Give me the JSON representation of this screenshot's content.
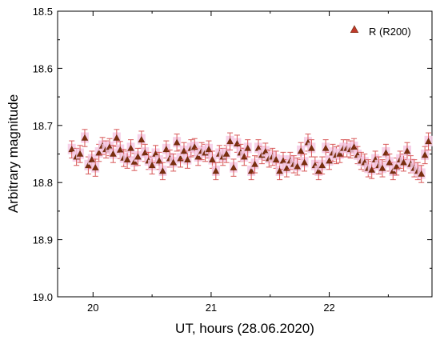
{
  "chart_data": {
    "type": "scatter",
    "title": "",
    "xlabel": "UT, hours (28.06.2020)",
    "ylabel": "Arbitrary magnitude",
    "xlim": [
      19.7,
      22.87
    ],
    "ylim": [
      19.0,
      18.5
    ],
    "y_inverted": true,
    "x_ticks": [
      20,
      21,
      22
    ],
    "x_tick_labels": [
      "20",
      "21",
      "22"
    ],
    "y_ticks": [
      18.5,
      18.6,
      18.7,
      18.8,
      18.9,
      19.0
    ],
    "y_tick_labels": [
      "18.5",
      "18.6",
      "18.7",
      "18.8",
      "18.9",
      "19.0"
    ],
    "grid": false,
    "legend_position": "top-right",
    "colors": {
      "marker_fill": "#7a2e0e",
      "marker_edge": "#6b2a0c",
      "error_bar": "#d85a5a",
      "halo": "#f6c9e4",
      "legend_marker_fill": "#c0392b"
    },
    "series": [
      {
        "name": "R (R200)",
        "marker": "triangle-up",
        "x": [
          19.82,
          19.86,
          19.89,
          19.93,
          19.96,
          19.99,
          20.02,
          20.05,
          20.08,
          20.11,
          20.14,
          20.17,
          20.2,
          20.23,
          20.26,
          20.29,
          20.32,
          20.35,
          20.38,
          20.41,
          20.44,
          20.47,
          20.5,
          20.53,
          20.56,
          20.59,
          20.62,
          20.65,
          20.68,
          20.71,
          20.74,
          20.77,
          20.8,
          20.83,
          20.86,
          20.89,
          20.92,
          20.95,
          20.98,
          21.01,
          21.04,
          21.07,
          21.1,
          21.13,
          21.16,
          21.19,
          21.22,
          21.25,
          21.28,
          21.31,
          21.34,
          21.37,
          21.4,
          21.43,
          21.46,
          21.49,
          21.52,
          21.55,
          21.58,
          21.61,
          21.64,
          21.67,
          21.7,
          21.73,
          21.76,
          21.79,
          21.82,
          21.85,
          21.88,
          21.91,
          21.94,
          21.97,
          22.0,
          22.03,
          22.06,
          22.09,
          22.12,
          22.15,
          22.18,
          22.21,
          22.24,
          22.27,
          22.3,
          22.33,
          22.36,
          22.39,
          22.42,
          22.45,
          22.48,
          22.51,
          22.54,
          22.57,
          22.6,
          22.63,
          22.66,
          22.69,
          22.72,
          22.75,
          22.78,
          22.81,
          22.84
        ],
        "y": [
          18.742,
          18.755,
          18.75,
          18.722,
          18.77,
          18.76,
          18.774,
          18.748,
          18.736,
          18.742,
          18.738,
          18.75,
          18.722,
          18.743,
          18.757,
          18.76,
          18.74,
          18.764,
          18.755,
          18.725,
          18.748,
          18.762,
          18.77,
          18.75,
          18.762,
          18.78,
          18.742,
          18.758,
          18.765,
          18.73,
          18.758,
          18.745,
          18.76,
          18.74,
          18.738,
          18.755,
          18.745,
          18.748,
          18.742,
          18.76,
          18.78,
          18.75,
          18.755,
          18.75,
          18.728,
          18.774,
          18.732,
          18.748,
          18.755,
          18.74,
          18.78,
          18.768,
          18.74,
          18.752,
          18.746,
          18.758,
          18.755,
          18.76,
          18.78,
          18.762,
          18.775,
          18.762,
          18.768,
          18.772,
          18.745,
          18.765,
          18.73,
          18.74,
          18.77,
          18.78,
          18.77,
          18.74,
          18.762,
          18.748,
          18.752,
          18.75,
          18.74,
          18.74,
          18.742,
          18.738,
          18.752,
          18.762,
          18.765,
          18.775,
          18.778,
          18.76,
          18.77,
          18.775,
          18.748,
          18.765,
          18.78,
          18.772,
          18.76,
          18.765,
          18.745,
          18.768,
          18.775,
          18.78,
          18.785,
          18.752,
          18.728
        ],
        "y_error": 0.015
      }
    ]
  }
}
